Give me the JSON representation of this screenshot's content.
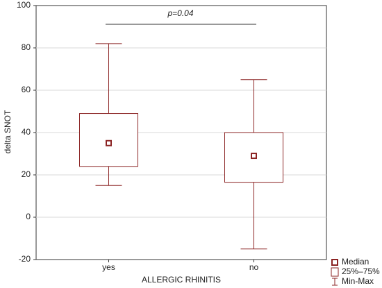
{
  "chart_data": {
    "type": "box",
    "y_label": "delta SNOT",
    "x_label": "ALLERGIC RHINITIS",
    "categories": [
      "yes",
      "no"
    ],
    "min": [
      15,
      -15
    ],
    "q1": [
      24,
      16.5
    ],
    "median": [
      35,
      29
    ],
    "q3": [
      49,
      40
    ],
    "max": [
      82,
      65
    ],
    "color": "#8b2323",
    "ylim": [
      -20,
      100
    ],
    "yticks": [
      -20,
      0,
      20,
      40,
      60,
      80,
      100
    ],
    "grid": true,
    "annotation": "p=0.04",
    "legend": [
      "Median",
      "25%–75%",
      "Min-Max"
    ],
    "legend_position": "bottom-right"
  }
}
